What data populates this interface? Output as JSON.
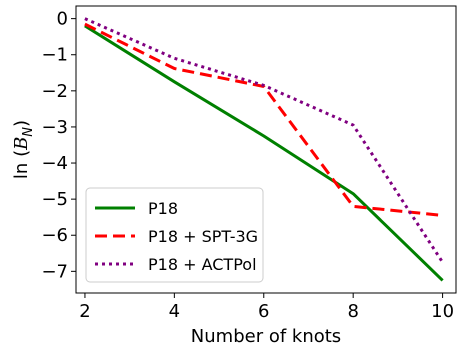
{
  "chart_data": {
    "type": "line",
    "xlabel": "Number of knots",
    "ylabel_prefix": "ln",
    "ylabel_symbol": "B",
    "ylabel_subscript": "N",
    "xlim": [
      1.8,
      10.3
    ],
    "ylim": [
      -7.6,
      0.35
    ],
    "xticks": [
      2,
      4,
      6,
      8,
      10
    ],
    "yticks": [
      0,
      -1,
      -2,
      -3,
      -4,
      -5,
      -6,
      -7
    ],
    "ytick_labels": [
      "0",
      "−1",
      "−2",
      "−3",
      "−4",
      "−5",
      "−6",
      "−7"
    ],
    "grid": false,
    "legend_position": "lower-left",
    "series": [
      {
        "name": "P18",
        "color": "#008000",
        "dash": "solid",
        "x": [
          2,
          4,
          6,
          8,
          10
        ],
        "values": [
          -0.2,
          -1.75,
          -3.25,
          -4.85,
          -7.25
        ]
      },
      {
        "name": "P18 + SPT-3G",
        "color": "#ff0000",
        "dash": "dashed",
        "x": [
          2,
          4,
          6,
          8,
          10
        ],
        "values": [
          -0.15,
          -1.38,
          -1.88,
          -5.2,
          -5.45
        ]
      },
      {
        "name": "P18 + ACTPol",
        "color": "#800080",
        "dash": "dotted",
        "x": [
          2,
          4,
          6,
          8,
          10
        ],
        "values": [
          0.0,
          -1.1,
          -1.85,
          -2.95,
          -6.75
        ]
      }
    ]
  }
}
